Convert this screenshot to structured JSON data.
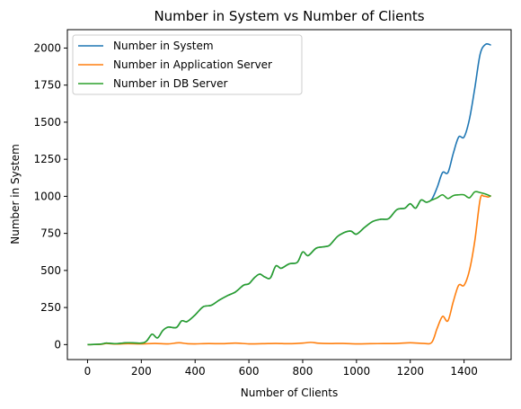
{
  "chart_data": {
    "type": "line",
    "title": "Number in System vs Number of Clients",
    "xlabel": "Number of Clients",
    "ylabel": "Number in System",
    "xlim": [
      -75,
      1575
    ],
    "ylim": [
      -101,
      2124
    ],
    "xticks": [
      0,
      200,
      400,
      600,
      800,
      1000,
      1200,
      1400
    ],
    "yticks": [
      0,
      250,
      500,
      750,
      1000,
      1250,
      1500,
      1750,
      2000
    ],
    "grid": false,
    "legend_position": "top-left",
    "series": [
      {
        "name": "Number in System",
        "color": "#1f77b4",
        "points": [
          [
            0,
            0
          ],
          [
            50,
            3
          ],
          [
            70,
            10
          ],
          [
            100,
            6
          ],
          [
            150,
            12
          ],
          [
            200,
            10
          ],
          [
            220,
            25
          ],
          [
            240,
            70
          ],
          [
            260,
            45
          ],
          [
            280,
            95
          ],
          [
            300,
            118
          ],
          [
            330,
            115
          ],
          [
            350,
            160
          ],
          [
            370,
            155
          ],
          [
            400,
            200
          ],
          [
            430,
            255
          ],
          [
            460,
            265
          ],
          [
            490,
            300
          ],
          [
            520,
            330
          ],
          [
            550,
            355
          ],
          [
            580,
            400
          ],
          [
            600,
            410
          ],
          [
            620,
            450
          ],
          [
            640,
            475
          ],
          [
            660,
            455
          ],
          [
            680,
            450
          ],
          [
            700,
            530
          ],
          [
            720,
            515
          ],
          [
            750,
            545
          ],
          [
            780,
            555
          ],
          [
            800,
            625
          ],
          [
            820,
            600
          ],
          [
            850,
            650
          ],
          [
            880,
            660
          ],
          [
            900,
            670
          ],
          [
            930,
            730
          ],
          [
            960,
            760
          ],
          [
            980,
            765
          ],
          [
            1000,
            745
          ],
          [
            1030,
            790
          ],
          [
            1060,
            830
          ],
          [
            1090,
            845
          ],
          [
            1120,
            850
          ],
          [
            1150,
            910
          ],
          [
            1180,
            920
          ],
          [
            1200,
            950
          ],
          [
            1220,
            920
          ],
          [
            1240,
            975
          ],
          [
            1260,
            960
          ],
          [
            1280,
            980
          ],
          [
            1300,
            1060
          ],
          [
            1320,
            1160
          ],
          [
            1340,
            1160
          ],
          [
            1360,
            1290
          ],
          [
            1380,
            1400
          ],
          [
            1400,
            1400
          ],
          [
            1420,
            1520
          ],
          [
            1440,
            1730
          ],
          [
            1460,
            1960
          ],
          [
            1480,
            2025
          ],
          [
            1500,
            2020
          ]
        ]
      },
      {
        "name": "Number in Application Server",
        "color": "#ff7f0e",
        "points": [
          [
            0,
            0
          ],
          [
            50,
            2
          ],
          [
            70,
            8
          ],
          [
            100,
            4
          ],
          [
            150,
            6
          ],
          [
            200,
            5
          ],
          [
            250,
            8
          ],
          [
            300,
            5
          ],
          [
            340,
            12
          ],
          [
            370,
            6
          ],
          [
            400,
            5
          ],
          [
            450,
            7
          ],
          [
            500,
            6
          ],
          [
            550,
            10
          ],
          [
            600,
            5
          ],
          [
            650,
            6
          ],
          [
            700,
            8
          ],
          [
            750,
            6
          ],
          [
            800,
            10
          ],
          [
            830,
            15
          ],
          [
            860,
            9
          ],
          [
            900,
            7
          ],
          [
            950,
            8
          ],
          [
            1000,
            5
          ],
          [
            1050,
            6
          ],
          [
            1100,
            7
          ],
          [
            1150,
            8
          ],
          [
            1200,
            12
          ],
          [
            1250,
            8
          ],
          [
            1280,
            15
          ],
          [
            1300,
            110
          ],
          [
            1320,
            190
          ],
          [
            1340,
            160
          ],
          [
            1360,
            290
          ],
          [
            1380,
            400
          ],
          [
            1400,
            400
          ],
          [
            1420,
            500
          ],
          [
            1440,
            700
          ],
          [
            1460,
            980
          ],
          [
            1475,
            1000
          ],
          [
            1490,
            995
          ],
          [
            1500,
            1005
          ]
        ]
      },
      {
        "name": "Number in DB Server",
        "color": "#2ca02c",
        "points": [
          [
            0,
            0
          ],
          [
            50,
            3
          ],
          [
            70,
            10
          ],
          [
            100,
            6
          ],
          [
            150,
            12
          ],
          [
            200,
            10
          ],
          [
            220,
            25
          ],
          [
            240,
            70
          ],
          [
            260,
            45
          ],
          [
            280,
            95
          ],
          [
            300,
            118
          ],
          [
            330,
            115
          ],
          [
            350,
            160
          ],
          [
            370,
            155
          ],
          [
            400,
            200
          ],
          [
            430,
            255
          ],
          [
            460,
            265
          ],
          [
            490,
            300
          ],
          [
            520,
            330
          ],
          [
            550,
            355
          ],
          [
            580,
            400
          ],
          [
            600,
            410
          ],
          [
            620,
            450
          ],
          [
            640,
            475
          ],
          [
            660,
            455
          ],
          [
            680,
            450
          ],
          [
            700,
            530
          ],
          [
            720,
            515
          ],
          [
            750,
            545
          ],
          [
            780,
            555
          ],
          [
            800,
            625
          ],
          [
            820,
            600
          ],
          [
            850,
            650
          ],
          [
            880,
            660
          ],
          [
            900,
            670
          ],
          [
            930,
            730
          ],
          [
            960,
            760
          ],
          [
            980,
            765
          ],
          [
            1000,
            745
          ],
          [
            1030,
            790
          ],
          [
            1060,
            830
          ],
          [
            1090,
            845
          ],
          [
            1120,
            850
          ],
          [
            1150,
            910
          ],
          [
            1180,
            920
          ],
          [
            1200,
            950
          ],
          [
            1220,
            920
          ],
          [
            1240,
            975
          ],
          [
            1260,
            960
          ],
          [
            1280,
            975
          ],
          [
            1300,
            990
          ],
          [
            1320,
            1010
          ],
          [
            1340,
            985
          ],
          [
            1360,
            1005
          ],
          [
            1380,
            1010
          ],
          [
            1400,
            1010
          ],
          [
            1420,
            990
          ],
          [
            1440,
            1030
          ],
          [
            1460,
            1025
          ],
          [
            1480,
            1015
          ],
          [
            1500,
            1000
          ]
        ]
      }
    ]
  }
}
